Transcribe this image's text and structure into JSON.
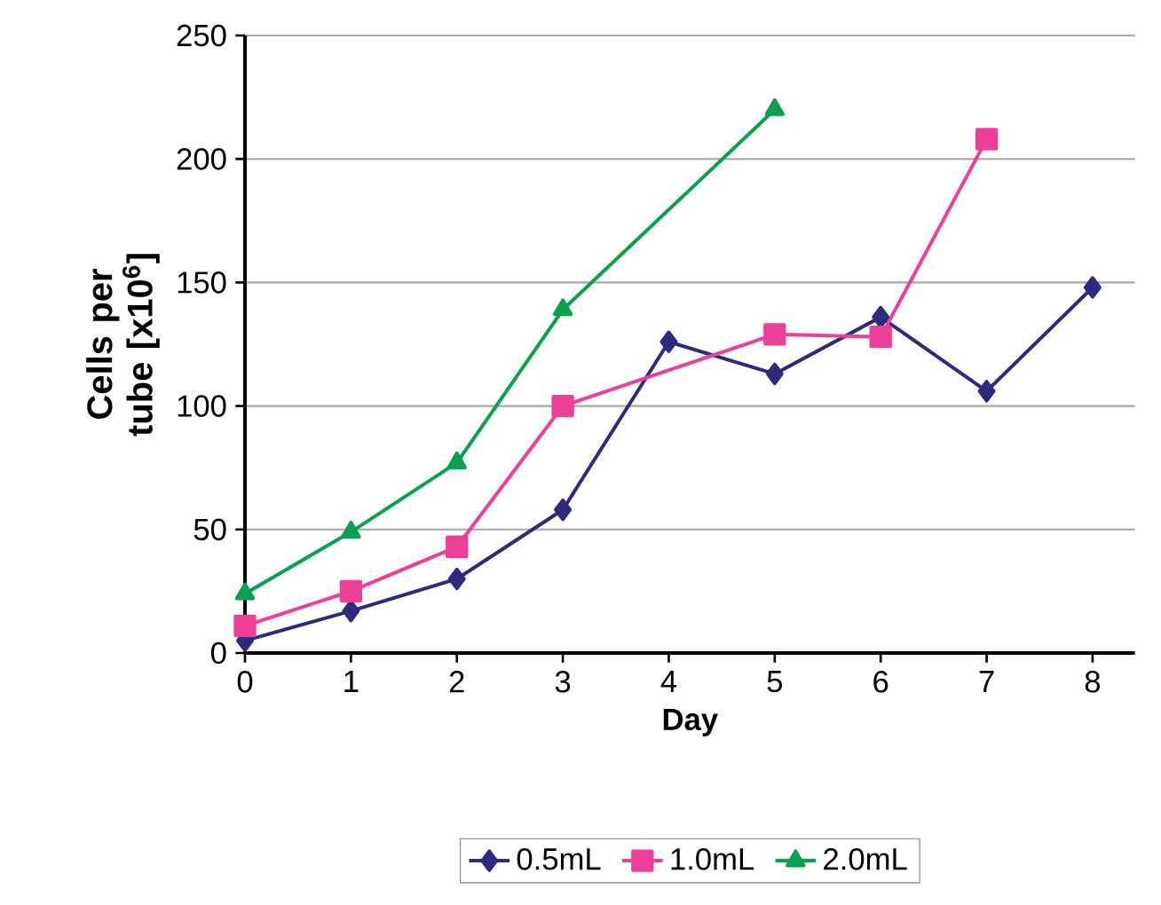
{
  "chart_data": {
    "type": "line",
    "xlabel": "Day",
    "ylabel": "Cells per tube [x10$^{6}$]",
    "xlim": [
      0,
      8.4
    ],
    "xticks": [
      0,
      1,
      2,
      3,
      4,
      5,
      6,
      7,
      8
    ],
    "ylim": [
      0,
      250
    ],
    "yticks": [
      0,
      50,
      100,
      150,
      200,
      250
    ],
    "grid": "y",
    "legend": "bottom",
    "line_style": "solid",
    "series": [
      {
        "name": "0.5mL",
        "color": "#2e2a7e",
        "marker": "diamond",
        "x": [
          0,
          1,
          2,
          3,
          4,
          5,
          6,
          7,
          8
        ],
        "values": [
          5,
          17,
          30,
          58,
          126,
          113,
          136,
          106,
          148
        ]
      },
      {
        "name": "1.0mL",
        "color": "#ec3f97",
        "marker": "square",
        "x": [
          0,
          1,
          2,
          3,
          5,
          6,
          7
        ],
        "values": [
          11,
          25,
          43,
          100,
          129,
          128,
          208
        ]
      },
      {
        "name": "2.0mL",
        "color": "#0aa050",
        "marker": "triangle",
        "x": [
          0,
          1,
          2,
          3,
          5
        ],
        "values": [
          24,
          49,
          77,
          139,
          220
        ]
      }
    ]
  }
}
